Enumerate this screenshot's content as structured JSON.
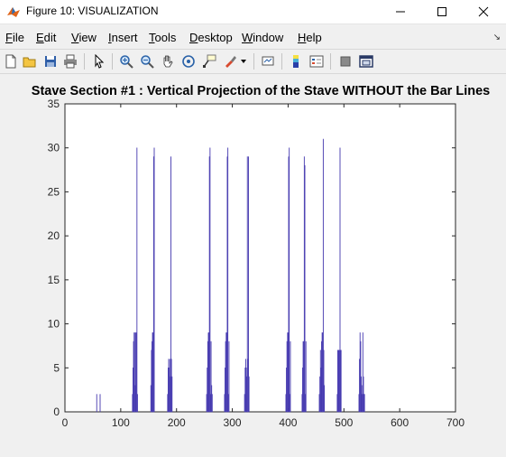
{
  "window": {
    "title": "Figure 10: VISUALIZATION",
    "minimize_icon": "minimize-icon",
    "maximize_icon": "maximize-icon",
    "close_icon": "close-icon"
  },
  "menu": [
    {
      "key": "F",
      "rest": "ile"
    },
    {
      "key": "E",
      "rest": "dit"
    },
    {
      "key": "V",
      "rest": "iew"
    },
    {
      "key": "I",
      "rest": "nsert"
    },
    {
      "key": "T",
      "rest": "ools"
    },
    {
      "key": "D",
      "rest": "esktop"
    },
    {
      "key": "W",
      "rest": "indow"
    },
    {
      "key": "H",
      "rest": "elp"
    }
  ],
  "toolbar_icons": [
    "new-figure-icon",
    "open-file-icon",
    "save-icon",
    "print-icon",
    "pointer-icon",
    "zoom-in-icon",
    "zoom-out-icon",
    "pan-icon",
    "rotate-3d-icon",
    "data-cursor-icon",
    "brush-icon",
    "brush-dropdown-icon",
    "link-plot-icon",
    "colorbar-icon",
    "legend-icon",
    "hide-plot-tools-icon",
    "show-plot-tools-icon"
  ],
  "colors": {
    "bar_fill": "#7b6fd6",
    "bar_edge": "#3b2fa8",
    "axes_bg": "#ffffff"
  },
  "chart_data": {
    "type": "bar",
    "title": "Stave Section #1 : Vertical Projection of the Stave WITHOUT the Bar Lines",
    "xlabel": "",
    "ylabel": "",
    "xlim": [
      0,
      700
    ],
    "ylim": [
      0,
      35
    ],
    "xticks": [
      0,
      100,
      200,
      300,
      400,
      500,
      600,
      700
    ],
    "yticks": [
      0,
      5,
      10,
      15,
      20,
      25,
      30,
      35
    ],
    "grid": false,
    "x": [
      57,
      63,
      121,
      122,
      123,
      124,
      125,
      126,
      127,
      128,
      129,
      130,
      154,
      155,
      156,
      157,
      158,
      159,
      160,
      184,
      185,
      186,
      187,
      188,
      189,
      190,
      191,
      192,
      254,
      255,
      256,
      257,
      258,
      259,
      260,
      261,
      262,
      263,
      264,
      286,
      287,
      288,
      289,
      290,
      291,
      292,
      293,
      294,
      322,
      323,
      324,
      325,
      326,
      327,
      328,
      329,
      330,
      396,
      397,
      398,
      399,
      400,
      401,
      402,
      403,
      404,
      425,
      426,
      427,
      428,
      429,
      430,
      431,
      432,
      456,
      457,
      458,
      459,
      460,
      461,
      462,
      463,
      464,
      465,
      488,
      489,
      490,
      491,
      492,
      493,
      494,
      495,
      527,
      528,
      529,
      530,
      531,
      532,
      533,
      534,
      535,
      536,
      537
    ],
    "values": [
      2,
      2,
      2,
      5,
      8,
      9,
      9,
      3,
      9,
      9,
      30,
      2,
      3,
      7,
      8,
      9,
      9,
      29,
      30,
      2,
      5,
      6,
      5,
      6,
      4,
      29,
      6,
      4,
      2,
      5,
      8,
      9,
      9,
      29,
      30,
      2,
      8,
      3,
      2,
      2,
      5,
      8,
      9,
      9,
      29,
      30,
      2,
      8,
      2,
      5,
      6,
      5,
      4,
      29,
      6,
      29,
      4,
      2,
      5,
      8,
      9,
      9,
      29,
      30,
      2,
      8,
      2,
      5,
      8,
      8,
      29,
      28,
      2,
      8,
      2,
      4,
      7,
      5,
      8,
      9,
      9,
      31,
      7,
      3,
      2,
      7,
      7,
      7,
      7,
      30,
      7,
      7,
      2,
      6,
      9,
      8,
      4,
      3,
      2,
      9,
      4,
      2,
      2
    ]
  }
}
